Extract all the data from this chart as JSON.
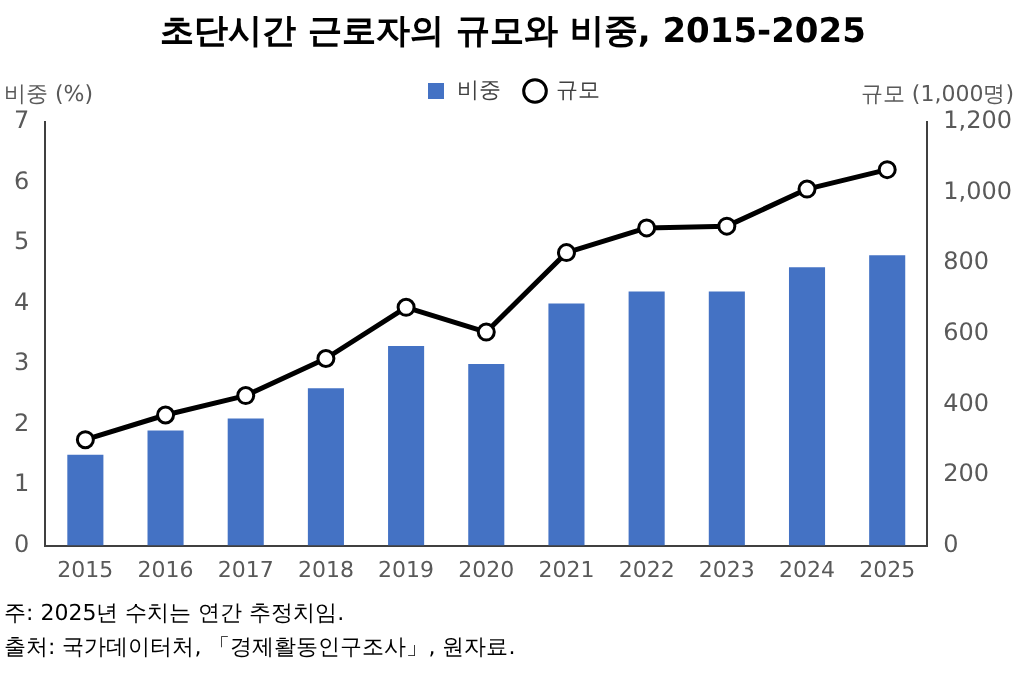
{
  "chart_data": {
    "type": "bar",
    "title": "초단시간 근로자의 규모와 비중, 2015-2025",
    "ylabel": "비중 (%)",
    "y2label": "규모 (1,000명)",
    "categories": [
      "2015",
      "2016",
      "2017",
      "2018",
      "2019",
      "2020",
      "2021",
      "2022",
      "2023",
      "2024",
      "2025"
    ],
    "series": [
      {
        "name": "비중",
        "color": "#4472c4",
        "values": [
          1.5,
          1.9,
          2.1,
          2.6,
          3.3,
          3.0,
          4.0,
          4.2,
          4.2,
          4.6,
          4.8
        ]
      },
      {
        "name": "규모",
        "type": "line",
        "axis": "y2",
        "color": "#000000",
        "marker": "circle",
        "values": [
          300,
          370,
          425,
          530,
          675,
          605,
          830,
          900,
          905,
          1010,
          1065
        ]
      }
    ],
    "ylim": [
      0,
      7
    ],
    "yticks": [
      0,
      1,
      2,
      3,
      4,
      5,
      6,
      7
    ],
    "y2lim": [
      0,
      1200
    ],
    "y2ticks": [
      0,
      200,
      400,
      600,
      800,
      {
        "value": 1000,
        "label": "1,000"
      },
      {
        "value": 1200,
        "label": "1,200"
      }
    ],
    "grid": false,
    "legend": "top",
    "annotations": [
      "주: 2025년 수치는 연간 추정치임.",
      "출처: 국가데이터처, 「경제활동인구조사」, 원자료."
    ]
  }
}
